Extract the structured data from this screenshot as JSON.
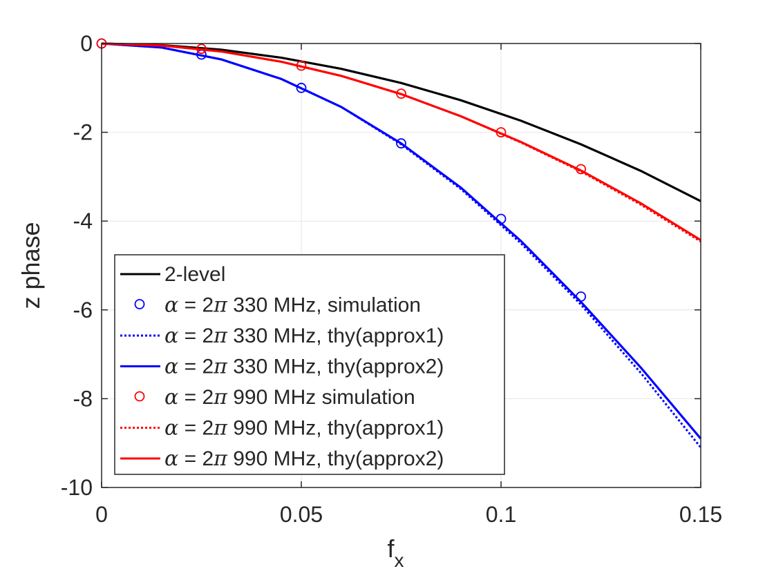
{
  "chart_data": {
    "type": "line",
    "title": "",
    "xlabel": "f",
    "xlabel_sub": "x",
    "ylabel": "z phase",
    "xlim": [
      0,
      0.15
    ],
    "ylim": [
      -10,
      0
    ],
    "xticks": [
      0,
      0.05,
      0.1,
      0.15
    ],
    "xtick_labels": [
      "0",
      "0.05",
      "0.1",
      "0.15"
    ],
    "yticks": [
      0,
      -2,
      -4,
      -6,
      -8,
      -10
    ],
    "ytick_labels": [
      "0",
      "-2",
      "-4",
      "-6",
      "-8",
      "-10"
    ],
    "grid": true,
    "legend_position": "bottom-left",
    "series": [
      {
        "name": "2-level",
        "prefix": "",
        "name_text": "2-level",
        "kind": "line",
        "style": "solid",
        "color": "#000000",
        "x": [
          0,
          0.015,
          0.03,
          0.045,
          0.06,
          0.075,
          0.09,
          0.105,
          0.12,
          0.135,
          0.15
        ],
        "y": [
          0,
          -0.035,
          -0.14,
          -0.32,
          -0.57,
          -0.89,
          -1.28,
          -1.74,
          -2.27,
          -2.87,
          -3.55
        ]
      },
      {
        "name": "α = 2π 330 MHz, simulation",
        "prefix": "α = 2π",
        "name_text": " 330 MHz, simulation",
        "kind": "marker",
        "color": "#0000ff",
        "x": [
          0,
          0.025,
          0.05,
          0.075,
          0.1,
          0.12
        ],
        "y": [
          0,
          -0.25,
          -1.0,
          -2.25,
          -3.95,
          -5.7
        ]
      },
      {
        "name": "α = 2π 330 MHz, thy(approx1)",
        "prefix": "α = 2π",
        "name_text": " 330 MHz, thy(approx1)",
        "kind": "line",
        "style": "dotted",
        "color": "#0000ff",
        "x": [
          0,
          0.015,
          0.03,
          0.045,
          0.06,
          0.075,
          0.09,
          0.105,
          0.12,
          0.135,
          0.15
        ],
        "y": [
          0,
          -0.09,
          -0.36,
          -0.8,
          -1.43,
          -2.27,
          -3.28,
          -4.5,
          -5.88,
          -7.42,
          -9.1
        ]
      },
      {
        "name": "α = 2π 330 MHz, thy(approx2)",
        "prefix": "α = 2π",
        "name_text": " 330 MHz, thy(approx2)",
        "kind": "line",
        "style": "solid",
        "color": "#0000ff",
        "x": [
          0,
          0.015,
          0.03,
          0.045,
          0.06,
          0.075,
          0.09,
          0.105,
          0.12,
          0.135,
          0.15
        ],
        "y": [
          0,
          -0.09,
          -0.36,
          -0.8,
          -1.43,
          -2.25,
          -3.25,
          -4.45,
          -5.82,
          -7.3,
          -8.9
        ]
      },
      {
        "name": "α = 2π 990 MHz simulation",
        "prefix": "α = 2π",
        "name_text": " 990 MHz simulation",
        "kind": "marker",
        "color": "#ff0000",
        "x": [
          0,
          0.025,
          0.05,
          0.075,
          0.1,
          0.12
        ],
        "y": [
          0,
          -0.12,
          -0.5,
          -1.13,
          -2.0,
          -2.83
        ]
      },
      {
        "name": "α = 2π 990 MHz, thy(approx1)",
        "prefix": "α = 2π",
        "name_text": " 990 MHz, thy(approx1)",
        "kind": "line",
        "style": "dotted",
        "color": "#ff0000",
        "x": [
          0,
          0.015,
          0.03,
          0.045,
          0.06,
          0.075,
          0.09,
          0.105,
          0.12,
          0.135,
          0.15
        ],
        "y": [
          0,
          -0.045,
          -0.18,
          -0.41,
          -0.73,
          -1.14,
          -1.64,
          -2.23,
          -2.88,
          -3.63,
          -4.46
        ]
      },
      {
        "name": "α = 2π 990 MHz, thy(approx2)",
        "prefix": "α = 2π",
        "name_text": " 990 MHz, thy(approx2)",
        "kind": "line",
        "style": "solid",
        "color": "#ff0000",
        "x": [
          0,
          0.015,
          0.03,
          0.045,
          0.06,
          0.075,
          0.09,
          0.105,
          0.12,
          0.135,
          0.15
        ],
        "y": [
          0,
          -0.045,
          -0.18,
          -0.41,
          -0.73,
          -1.14,
          -1.64,
          -2.22,
          -2.86,
          -3.6,
          -4.43
        ]
      }
    ]
  }
}
